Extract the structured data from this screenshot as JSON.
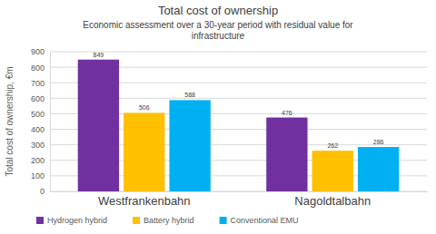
{
  "chart_data": {
    "type": "bar",
    "title": "Total cost of ownership",
    "subtitle": "Economic assessment over a 30-year period with residual value for infrastructure",
    "y_label": "Total cost of ownership, €m",
    "categories": [
      "Westfrankenbahn",
      "Nagoldtalbahn"
    ],
    "series": [
      {
        "name": "Hydrogen hybrid",
        "color": "#7030a0",
        "values": [
          849,
          476
        ]
      },
      {
        "name": "Battery hybrid",
        "color": "#ffc000",
        "values": [
          506,
          262
        ]
      },
      {
        "name": "Conventional EMU",
        "color": "#00b0f0",
        "values": [
          588,
          286
        ]
      }
    ],
    "ylim": [
      0,
      900
    ],
    "yticks": [
      0,
      100,
      200,
      300,
      400,
      500,
      600,
      700,
      800,
      900
    ],
    "grid": true,
    "legend": "bottom",
    "data_labels": true
  }
}
